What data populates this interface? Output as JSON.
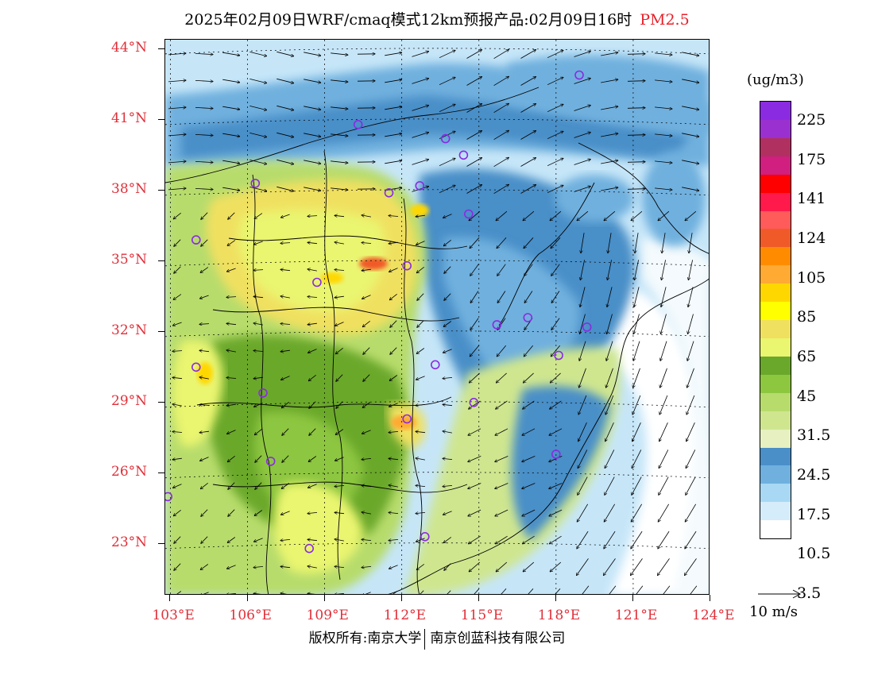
{
  "title": {
    "main": "2025年02月09日WRF/cmaq模式12km预报产品:02月09日16时",
    "pollutant": "PM2.5",
    "pollutant_color": "#e8202a"
  },
  "map": {
    "lat_labels": [
      "44°N",
      "41°N",
      "38°N",
      "35°N",
      "32°N",
      "29°N",
      "26°N",
      "23°N"
    ],
    "lon_labels": [
      "103°E",
      "106°E",
      "109°E",
      "112°E",
      "115°E",
      "118°E",
      "121°E",
      "124°E"
    ],
    "label_color": "#e0303a",
    "cities": [
      {
        "lon": 118.9,
        "lat": 42.9
      },
      {
        "lon": 110.3,
        "lat": 40.8
      },
      {
        "lon": 113.7,
        "lat": 40.2
      },
      {
        "lon": 114.4,
        "lat": 39.5
      },
      {
        "lon": 106.3,
        "lat": 38.3
      },
      {
        "lon": 111.5,
        "lat": 37.9
      },
      {
        "lon": 112.7,
        "lat": 38.2
      },
      {
        "lon": 114.6,
        "lat": 37.0
      },
      {
        "lon": 104.0,
        "lat": 35.9
      },
      {
        "lon": 112.2,
        "lat": 34.8
      },
      {
        "lon": 108.7,
        "lat": 34.1
      },
      {
        "lon": 115.7,
        "lat": 32.3
      },
      {
        "lon": 116.9,
        "lat": 32.6
      },
      {
        "lon": 119.2,
        "lat": 32.2
      },
      {
        "lon": 118.1,
        "lat": 31.0
      },
      {
        "lon": 104.0,
        "lat": 30.5
      },
      {
        "lon": 113.3,
        "lat": 30.6
      },
      {
        "lon": 106.6,
        "lat": 29.4
      },
      {
        "lon": 114.8,
        "lat": 29.0
      },
      {
        "lon": 112.2,
        "lat": 28.3
      },
      {
        "lon": 106.9,
        "lat": 26.5
      },
      {
        "lon": 118.0,
        "lat": 26.8
      },
      {
        "lon": 102.9,
        "lat": 25.0
      },
      {
        "lon": 112.9,
        "lat": 23.3
      },
      {
        "lon": 108.4,
        "lat": 22.8
      }
    ],
    "city_color": "#8a2be2"
  },
  "colorbar": {
    "unit": "(ug/m3)",
    "colors": [
      "#8a2be2",
      "#9b30d0",
      "#b03060",
      "#d01f7f",
      "#ff0000",
      "#ff1a4b",
      "#ff5b5b",
      "#f05a28",
      "#ff8c00",
      "#ffaa33",
      "#ffd700",
      "#ffff00",
      "#f0e060",
      "#eaf570",
      "#6aa82c",
      "#8dc63f",
      "#b7dc6c",
      "#cfe68f",
      "#e6f0c0",
      "#4a8fc8",
      "#6fb0de",
      "#a8d8f3",
      "#d5ecfa",
      "#ffffff"
    ],
    "labels": [
      "225",
      "175",
      "141",
      "124",
      "105",
      "85",
      "65",
      "45",
      "31.5",
      "24.5",
      "17.5",
      "10.5",
      "3.5"
    ]
  },
  "wind_reference": {
    "unit": "10 m/s"
  },
  "footer": {
    "copyright_left": "版权所有:南京大学",
    "copyright_right": "南京创蓝科技有限公司"
  }
}
